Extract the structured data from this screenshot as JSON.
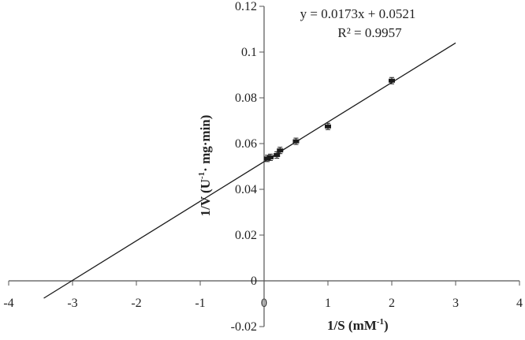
{
  "chart_data": {
    "type": "scatter",
    "title": "",
    "xlabel": "1/S (mM",
    "xlabel_sup": "-1",
    "xlabel_end": ")",
    "ylabel": "1/V (U",
    "ylabel_sup": "-1",
    "ylabel_end": "· mg·min)",
    "xlim": [
      -4,
      4
    ],
    "ylim": [
      -0.02,
      0.12
    ],
    "x_ticks": [
      -4,
      -3,
      -2,
      -1,
      0,
      1,
      2,
      3,
      4
    ],
    "y_ticks": [
      -0.02,
      0,
      0.02,
      0.04,
      0.06,
      0.08,
      0.1,
      0.12
    ],
    "x_tick_labels": [
      "-4",
      "-3",
      "-2",
      "-1",
      "0",
      "1",
      "2",
      "3",
      "4"
    ],
    "y_tick_labels": [
      "-0.02",
      "0",
      "0.02",
      "0.04",
      "0.06",
      "0.08",
      "0.1",
      "0.12"
    ],
    "grid": false,
    "points": [
      {
        "x": 0.05,
        "y": 0.0535
      },
      {
        "x": 0.1,
        "y": 0.054
      },
      {
        "x": 0.2,
        "y": 0.055
      },
      {
        "x": 0.25,
        "y": 0.057
      },
      {
        "x": 0.5,
        "y": 0.061
      },
      {
        "x": 1,
        "y": 0.0675
      },
      {
        "x": 2,
        "y": 0.0875
      }
    ],
    "trendline": {
      "slope": 0.0173,
      "intercept": 0.0521,
      "x_range": [
        -3.45,
        3
      ]
    },
    "equation": "y = 0.0173x + 0.0521",
    "r_squared": "R² = 0.9957",
    "marker_color": "#1a1a1a",
    "line_color": "#1a1a1a"
  }
}
